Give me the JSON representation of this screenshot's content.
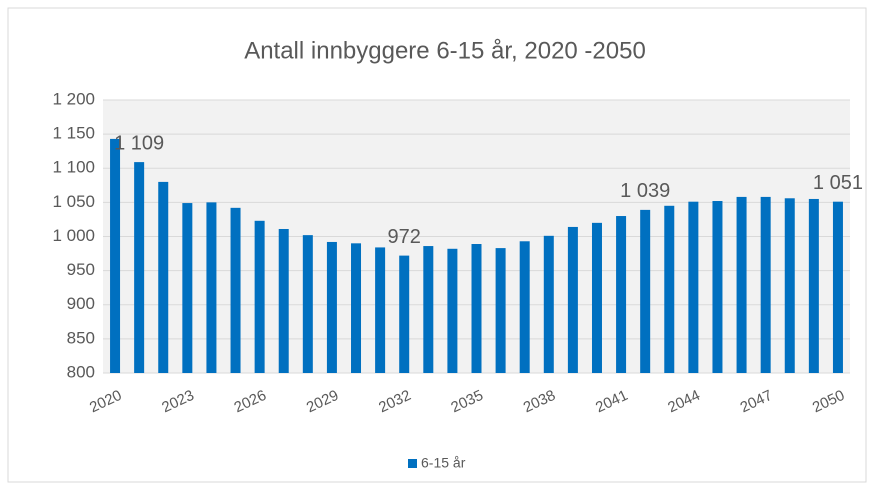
{
  "chart_data": {
    "type": "bar",
    "title": "Antall innbyggere 6-15 år, 2020 -2050",
    "categories": [
      "2020",
      null,
      null,
      "2023",
      null,
      null,
      "2026",
      null,
      null,
      "2029",
      null,
      null,
      "2032",
      null,
      null,
      "2035",
      null,
      null,
      "2038",
      null,
      null,
      "2041",
      null,
      null,
      "2044",
      null,
      null,
      "2047",
      null,
      null,
      "2050"
    ],
    "series": [
      {
        "name": "6-15 år",
        "color": "#0070c0",
        "values": [
          1143,
          1109,
          1080,
          1049,
          1050,
          1042,
          1023,
          1011,
          1002,
          992,
          990,
          984,
          972,
          986,
          982,
          989,
          983,
          993,
          1001,
          1014,
          1020,
          1030,
          1039,
          1045,
          1051,
          1052,
          1058,
          1058,
          1056,
          1055,
          1051
        ],
        "value_labels": [
          null,
          "1 109",
          null,
          null,
          null,
          null,
          null,
          null,
          null,
          null,
          null,
          null,
          "972",
          null,
          null,
          null,
          null,
          null,
          null,
          null,
          null,
          null,
          "1 039",
          null,
          null,
          null,
          null,
          null,
          null,
          null,
          "1 051"
        ]
      }
    ],
    "ylim": [
      800,
      1200
    ],
    "yticks": [
      800,
      850,
      900,
      950,
      {
        "value": 1000,
        "label": "1 000"
      },
      {
        "value": 1050,
        "label": "1 050"
      },
      {
        "value": 1100,
        "label": "1 100"
      },
      {
        "value": 1150,
        "label": "1 150"
      },
      {
        "value": 1200,
        "label": "1 200"
      }
    ],
    "grid": true,
    "legend": "bottom"
  }
}
